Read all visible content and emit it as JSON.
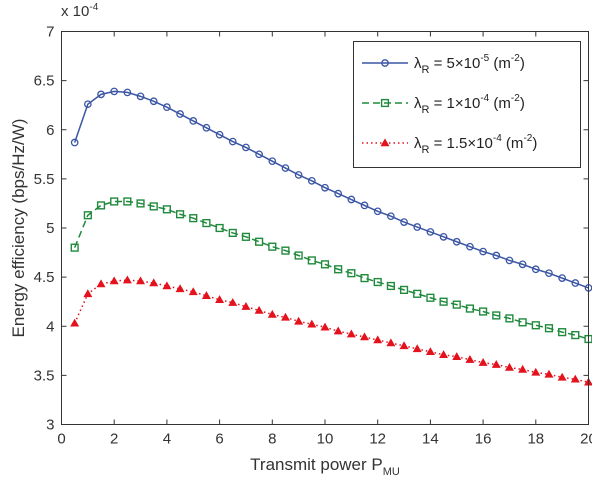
{
  "chart_data": {
    "type": "line",
    "xlabel": "Transmit power P",
    "xlabel_sub": "MU",
    "ylabel": "Energy efficiency (bps/Hz/W)",
    "y_multiplier": "x 10",
    "y_multiplier_exp": "-4",
    "xlim": [
      0,
      20
    ],
    "ylim": [
      3,
      7
    ],
    "x_ticks": [
      0,
      2,
      4,
      6,
      8,
      10,
      12,
      14,
      16,
      18,
      20
    ],
    "x_tick_labels": [
      "0",
      "2",
      "4",
      "6",
      "8",
      "10",
      "12",
      "14",
      "16",
      "18",
      "20"
    ],
    "y_ticks": [
      3,
      3.5,
      4,
      4.5,
      5,
      5.5,
      6,
      6.5,
      7
    ],
    "y_tick_labels": [
      "3",
      "3.5",
      "4",
      "4.5",
      "5",
      "5.5",
      "6",
      "6.5",
      "7"
    ],
    "grid": false,
    "legend_position": "top-right",
    "x": [
      0.5,
      1.0,
      1.5,
      2.0,
      2.5,
      3.0,
      3.5,
      4.0,
      4.5,
      5.0,
      5.5,
      6.0,
      6.5,
      7.0,
      7.5,
      8.0,
      8.5,
      9.0,
      9.5,
      10.0,
      10.5,
      11.0,
      11.5,
      12.0,
      12.5,
      13.0,
      13.5,
      14.0,
      14.5,
      15.0,
      15.5,
      16.0,
      16.5,
      17.0,
      17.5,
      18.0,
      18.5,
      19.0,
      19.5,
      20.0
    ],
    "series": [
      {
        "name_parts": {
          "lambda": "λ",
          "sub": "R",
          "mid": " = 5×10",
          "exp": "-5",
          "unit": " (m",
          "unit_exp": "-2",
          "close": ")"
        },
        "color": "#3a55a4",
        "marker": "circle",
        "dash": "solid",
        "values": [
          5.87,
          6.26,
          6.36,
          6.39,
          6.38,
          6.34,
          6.29,
          6.23,
          6.16,
          6.09,
          6.02,
          5.95,
          5.88,
          5.82,
          5.75,
          5.68,
          5.61,
          5.54,
          5.48,
          5.41,
          5.35,
          5.29,
          5.23,
          5.17,
          5.12,
          5.06,
          5.01,
          4.96,
          4.91,
          4.86,
          4.81,
          4.76,
          4.72,
          4.67,
          4.63,
          4.58,
          4.54,
          4.49,
          4.44,
          4.39
        ]
      },
      {
        "name_parts": {
          "lambda": "λ",
          "sub": "R",
          "mid": " = 1×10",
          "exp": "-4",
          "unit": " (m",
          "unit_exp": "-2",
          "close": ")"
        },
        "color": "#1f8a3c",
        "marker": "square",
        "dash": "dashed",
        "values": [
          4.8,
          5.13,
          5.23,
          5.27,
          5.27,
          5.25,
          5.22,
          5.19,
          5.14,
          5.1,
          5.05,
          5.0,
          4.95,
          4.91,
          4.86,
          4.81,
          4.77,
          4.72,
          4.67,
          4.63,
          4.58,
          4.54,
          4.49,
          4.45,
          4.41,
          4.37,
          4.33,
          4.29,
          4.25,
          4.22,
          4.18,
          4.15,
          4.11,
          4.08,
          4.04,
          4.01,
          3.98,
          3.94,
          3.91,
          3.87
        ]
      },
      {
        "name_parts": {
          "lambda": "λ",
          "sub": "R",
          "mid": " = 1.5×10",
          "exp": "-4",
          "unit": " (m",
          "unit_exp": "-2",
          "close": ")"
        },
        "color": "#e3121c",
        "marker": "triangle",
        "dash": "dotted",
        "values": [
          4.03,
          4.33,
          4.43,
          4.46,
          4.47,
          4.46,
          4.44,
          4.41,
          4.38,
          4.35,
          4.31,
          4.27,
          4.24,
          4.2,
          4.16,
          4.12,
          4.09,
          4.05,
          4.02,
          3.99,
          3.95,
          3.92,
          3.89,
          3.86,
          3.83,
          3.8,
          3.77,
          3.74,
          3.71,
          3.69,
          3.66,
          3.63,
          3.61,
          3.58,
          3.56,
          3.53,
          3.51,
          3.48,
          3.46,
          3.43
        ]
      }
    ]
  }
}
